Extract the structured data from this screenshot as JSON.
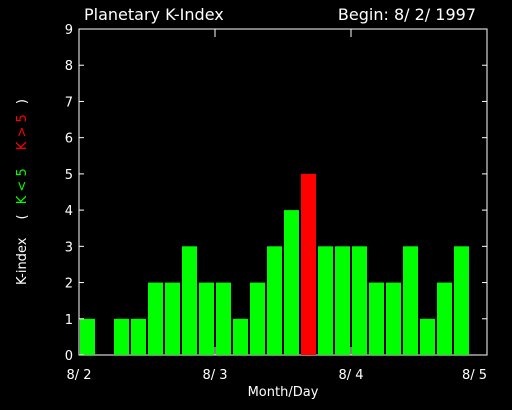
{
  "chart_data": {
    "type": "bar",
    "title": "Planetary K-Index",
    "subtitle": "Begin: 8/ 2/ 1997",
    "xlabel": "Month/Day",
    "ylabel": {
      "prefix": "K-index",
      "open_paren": "(",
      "low_label": "K < 5",
      "high_label": "K > 5",
      "close_paren": ")"
    },
    "ylim": [
      0,
      9
    ],
    "yticks": [
      "0",
      "1",
      "2",
      "3",
      "4",
      "5",
      "6",
      "7",
      "8",
      "9"
    ],
    "xticks": [
      "8/ 2",
      "8/ 3",
      "8/ 4",
      "8/ 5"
    ],
    "xlim": [
      0,
      24
    ],
    "bars_per_day": 8,
    "values": [
      1,
      0,
      1,
      1,
      2,
      2,
      3,
      2,
      2,
      1,
      2,
      3,
      4,
      5,
      3,
      3,
      3,
      2,
      2,
      3,
      1,
      2,
      3,
      0
    ],
    "threshold": 5,
    "colors": {
      "low": "#00ff00",
      "high": "#ff0000",
      "axis": "#ffffff",
      "background": "#000000"
    },
    "grid": false
  }
}
